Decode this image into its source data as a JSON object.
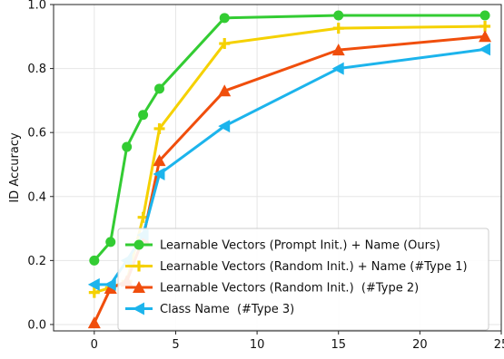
{
  "chart_data": {
    "type": "line",
    "title": "",
    "xlabel": "",
    "ylabel": "ID Accuracy",
    "xlim": [
      -2.5,
      25
    ],
    "ylim": [
      -0.02,
      1.0
    ],
    "xticks": [
      0,
      5,
      10,
      15,
      20,
      25
    ],
    "yticks": [
      0.0,
      0.2,
      0.4,
      0.6,
      0.8,
      1.0
    ],
    "xtick_labels": [
      "0",
      "5",
      "10",
      "15",
      "20",
      "25"
    ],
    "ytick_labels": [
      "0.0",
      "0.2",
      "0.4",
      "0.6",
      "0.8",
      "1.0"
    ],
    "grid": true,
    "legend_position": "lower-right",
    "series": [
      {
        "name": "Learnable Vectors (Prompt Init.) + Name (Ours)",
        "color": "#33cc33",
        "marker": "circle",
        "x": [
          0,
          1,
          2,
          3,
          4,
          8,
          15,
          24
        ],
        "y": [
          0.2,
          0.258,
          0.555,
          0.655,
          0.737,
          0.958,
          0.966,
          0.966
        ]
      },
      {
        "name": "Learnable Vectors (Random Init.) + Name (#Type 1)",
        "color": "#f5d100",
        "marker": "plus",
        "x": [
          0,
          1,
          2,
          3,
          4,
          8,
          15,
          24
        ],
        "y": [
          0.1,
          0.115,
          0.135,
          0.335,
          0.612,
          0.878,
          0.926,
          0.932
        ]
      },
      {
        "name": "Learnable Vectors (Random Init.)  (#Type 2)",
        "color": "#f04e0c",
        "marker": "triangle-up",
        "x": [
          0,
          1,
          2,
          3,
          4,
          8,
          15,
          24
        ],
        "y": [
          0.005,
          0.113,
          0.135,
          0.27,
          0.512,
          0.73,
          0.858,
          0.9
        ]
      },
      {
        "name": "Class Name  (#Type 3)",
        "color": "#1cb4ec",
        "marker": "triangle-left",
        "x": [
          0,
          1,
          2,
          3,
          4,
          8,
          15,
          24
        ],
        "y": [
          0.125,
          0.125,
          0.2,
          0.28,
          0.47,
          0.62,
          0.8,
          0.86
        ]
      }
    ]
  }
}
